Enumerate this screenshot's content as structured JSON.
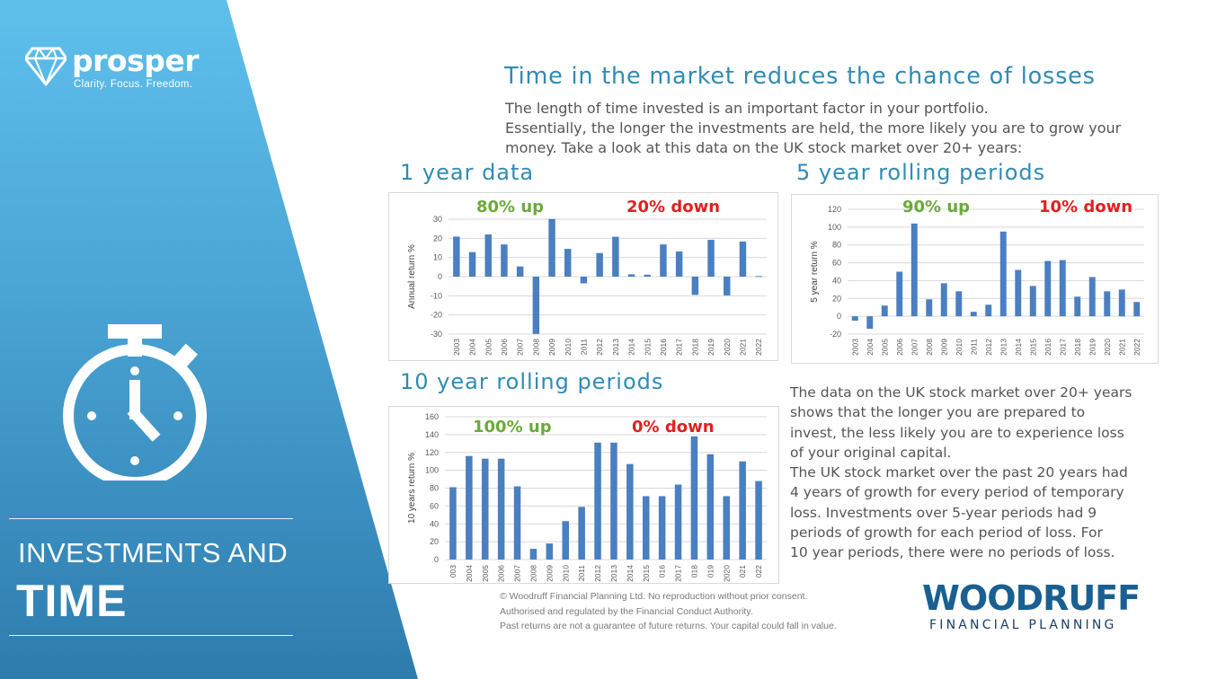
{
  "brand": {
    "name": "prosper",
    "tagline": "Clarity. Focus. Freedom.",
    "accent_color": "#2f8bb4"
  },
  "sidebar": {
    "icon": "stopwatch-icon",
    "title_line1": "INVESTMENTS AND",
    "title_line2": "TIME"
  },
  "header": {
    "title": "Time in the market reduces the chance of losses",
    "intro_lines": [
      "The length of time invested is an important factor in your portfolio.",
      "Essentially, the longer the investments are held, the more likely you are to grow your",
      "money. Take a look at this data on the UK stock market over 20+ years:"
    ]
  },
  "sections": {
    "one_year": "1 year data",
    "five_year": "5 year rolling periods",
    "ten_year": "10 year rolling periods"
  },
  "chart_data": [
    {
      "type": "bar",
      "ylabel": "Annual return %",
      "ylim": [
        -30,
        30
      ],
      "yticks": [
        30,
        20,
        10,
        0,
        -10,
        -20,
        -30
      ],
      "categories": [
        "2003",
        "2004",
        "2005",
        "2006",
        "2007",
        "2008",
        "2009",
        "2010",
        "2011",
        "2012",
        "2013",
        "2014",
        "2015",
        "2016",
        "2017",
        "2018",
        "2019",
        "2020",
        "2021",
        "2022"
      ],
      "values": [
        20.9,
        12.8,
        22.0,
        16.8,
        5.3,
        -29.9,
        30.1,
        14.5,
        -3.5,
        12.3,
        20.8,
        1.2,
        1.0,
        16.8,
        13.1,
        -9.5,
        19.2,
        -9.8,
        18.3,
        0.3
      ],
      "up_label": "80% up",
      "down_label": "20% down",
      "bar_color": "#4a7fc1",
      "grid": true,
      "legend": "none"
    },
    {
      "type": "bar",
      "ylabel": "5 year return %",
      "ylim": [
        -20,
        120
      ],
      "yticks": [
        120,
        100,
        80,
        60,
        40,
        20,
        0,
        -20
      ],
      "categories": [
        "2003",
        "2004",
        "2005",
        "2006",
        "2007",
        "2008",
        "2009",
        "2010",
        "2011",
        "2012",
        "2013",
        "2014",
        "2015",
        "2016",
        "2017",
        "2018",
        "2019",
        "2020",
        "2021",
        "2022"
      ],
      "values": [
        -5,
        -14,
        12,
        50,
        104,
        19,
        37,
        28,
        5,
        13,
        95,
        52,
        34,
        62,
        63,
        22,
        44,
        28,
        30,
        16
      ],
      "up_label": "90% up",
      "down_label": "10% down",
      "bar_color": "#4a7fc1",
      "grid": true,
      "legend": "none"
    },
    {
      "type": "bar",
      "ylabel": "10 years return %",
      "ylim": [
        0,
        160
      ],
      "yticks": [
        160,
        140,
        120,
        100,
        80,
        60,
        40,
        20,
        0
      ],
      "categories": [
        "003",
        "2004",
        "2005",
        "2006",
        "2007",
        "2008",
        "2009",
        "2010",
        "2011",
        "2012",
        "2013",
        "2014",
        "2015",
        "016",
        "2017",
        "018",
        "019",
        "2020",
        "021",
        "022"
      ],
      "values": [
        81,
        116,
        113,
        113,
        82,
        12,
        18,
        43,
        59,
        131,
        131,
        107,
        71,
        71,
        84,
        138,
        118,
        71,
        110,
        88
      ],
      "up_label": "100% up",
      "down_label": "0% down",
      "bar_color": "#4a7fc1",
      "grid": true,
      "legend": "none"
    }
  ],
  "body_lines": [
    "The data on the UK stock market over 20+ years",
    "shows that the longer you are prepared to",
    "invest, the less likely you are to experience loss",
    "of your original capital.",
    "The UK stock market over the past 20 years had",
    "4 years of growth for every period of temporary",
    "loss. Investments over 5-year periods had 9",
    "periods of growth for each period of loss. For",
    "10 year periods, there were no periods of loss."
  ],
  "footer_lines": [
    "© Woodruff Financial Planning Ltd. No reproduction without prior consent.",
    "Authorised and regulated by the Financial Conduct Authority.",
    "Past returns are not a guarantee of future returns. Your capital could fall in value."
  ],
  "partner": {
    "name": "WOODRUFF",
    "subtitle": "FINANCIAL PLANNING"
  }
}
